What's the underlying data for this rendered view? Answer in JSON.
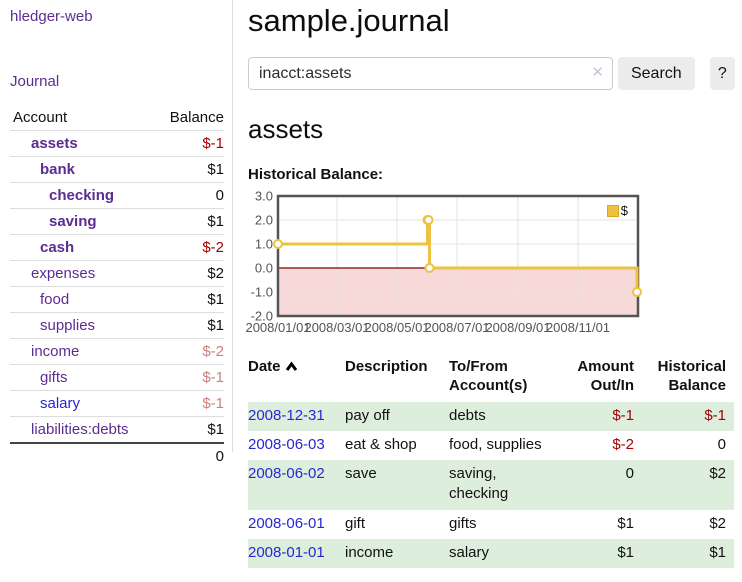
{
  "app": {
    "brand": "hledger-web",
    "journal_label": "Journal"
  },
  "sidebar": {
    "accounts_header": {
      "account": "Account",
      "balance": "Balance"
    },
    "accounts": [
      {
        "name": "assets",
        "balance": "$-1",
        "level": 1,
        "bold": true,
        "link": "purple",
        "balance_class": "neg-strong"
      },
      {
        "name": "bank",
        "balance": "$1",
        "level": 2,
        "bold": true,
        "link": "purple",
        "balance_class": ""
      },
      {
        "name": "checking",
        "balance": "0",
        "level": 3,
        "bold": true,
        "link": "purple",
        "balance_class": ""
      },
      {
        "name": "saving",
        "balance": "$1",
        "level": 3,
        "bold": true,
        "link": "purple",
        "balance_class": ""
      },
      {
        "name": "cash",
        "balance": "$-2",
        "level": 2,
        "bold": true,
        "link": "purple",
        "balance_class": "neg-strong"
      },
      {
        "name": "expenses",
        "balance": "$2",
        "level": 1,
        "bold": false,
        "link": "purple",
        "balance_class": ""
      },
      {
        "name": "food",
        "balance": "$1",
        "level": 2,
        "bold": false,
        "link": "purple",
        "balance_class": ""
      },
      {
        "name": "supplies",
        "balance": "$1",
        "level": 2,
        "bold": false,
        "link": "purple",
        "balance_class": ""
      },
      {
        "name": "income",
        "balance": "$-2",
        "level": 1,
        "bold": false,
        "link": "purple",
        "balance_class": "neg-muted"
      },
      {
        "name": "gifts",
        "balance": "$-1",
        "level": 2,
        "bold": false,
        "link": "purple",
        "balance_class": "neg-muted"
      },
      {
        "name": "salary",
        "balance": "$-1",
        "level": 2,
        "bold": false,
        "link": "blue",
        "balance_class": "neg-muted"
      },
      {
        "name": "liabilities:debts",
        "balance": "$1",
        "level": 1,
        "bold": false,
        "link": "purple",
        "balance_class": ""
      }
    ],
    "total": "0"
  },
  "header": {
    "title": "sample.journal"
  },
  "search": {
    "value": "inacct:assets",
    "clear_icon": "✕",
    "button_label": "Search",
    "help_label": "?"
  },
  "account_page": {
    "title": "assets",
    "chart_label": "Historical Balance:"
  },
  "chart_data": {
    "type": "line",
    "subtype": "step-after",
    "title": "Historical Balance",
    "xlim": [
      "2008-01-01",
      "2009-01-01"
    ],
    "ylim": [
      -2,
      3
    ],
    "x_ticks": [
      {
        "date": "2008-01-01",
        "label": "2008/01/01"
      },
      {
        "date": "2008-03-01",
        "label": "2008/03/01"
      },
      {
        "date": "2008-05-01",
        "label": "2008/05/01"
      },
      {
        "date": "2008-07-01",
        "label": "2008/07/01"
      },
      {
        "date": "2008-09-01",
        "label": "2008/09/01"
      },
      {
        "date": "2008-11-01",
        "label": "2008/11/01"
      }
    ],
    "y_ticks": [
      {
        "value": 3,
        "label": "3.0"
      },
      {
        "value": 2,
        "label": "2.0"
      },
      {
        "value": 1,
        "label": "1.0"
      },
      {
        "value": 0,
        "label": "0.0"
      },
      {
        "value": -1,
        "label": "-1.0"
      },
      {
        "value": -2,
        "label": "-2.0"
      }
    ],
    "grid": true,
    "legend_position": "top-right",
    "series": [
      {
        "name": "$",
        "color": "#edc240",
        "points": [
          {
            "x": "2008-01-01",
            "y": 1
          },
          {
            "x": "2008-06-01",
            "y": 2
          },
          {
            "x": "2008-06-02",
            "y": 2
          },
          {
            "x": "2008-06-03",
            "y": 0
          },
          {
            "x": "2008-12-31",
            "y": -1
          }
        ]
      }
    ],
    "zero_line_color": "#7d0000",
    "negative_region_color": "#f8d9d9",
    "gridline_color": "#e3e3e3",
    "border_color": "#545454"
  },
  "register": {
    "columns": [
      {
        "label": "Date",
        "sorted": "ascending",
        "align": "left"
      },
      {
        "label": "Description",
        "align": "left"
      },
      {
        "label": "To/From Account(s)",
        "align": "left"
      },
      {
        "label": "Amount Out/In",
        "align": "right"
      },
      {
        "label": "Historical Balance",
        "align": "right"
      }
    ],
    "rows": [
      {
        "date": "2008-12-31",
        "description": "pay off",
        "accounts": "debts",
        "amount": "$-1",
        "amount_negative": true,
        "balance": "$-1",
        "balance_negative": true
      },
      {
        "date": "2008-06-03",
        "description": "eat & shop",
        "accounts": "food, supplies",
        "amount": "$-2",
        "amount_negative": true,
        "balance": "0",
        "balance_negative": false
      },
      {
        "date": "2008-06-02",
        "description": "save",
        "accounts": "saving, checking",
        "amount": "0",
        "amount_negative": false,
        "balance": "$2",
        "balance_negative": false
      },
      {
        "date": "2008-06-01",
        "description": "gift",
        "accounts": "gifts",
        "amount": "$1",
        "amount_negative": false,
        "balance": "$2",
        "balance_negative": false
      },
      {
        "date": "2008-01-01",
        "description": "income",
        "accounts": "salary",
        "amount": "$1",
        "amount_negative": false,
        "balance": "$1",
        "balance_negative": false
      }
    ]
  }
}
